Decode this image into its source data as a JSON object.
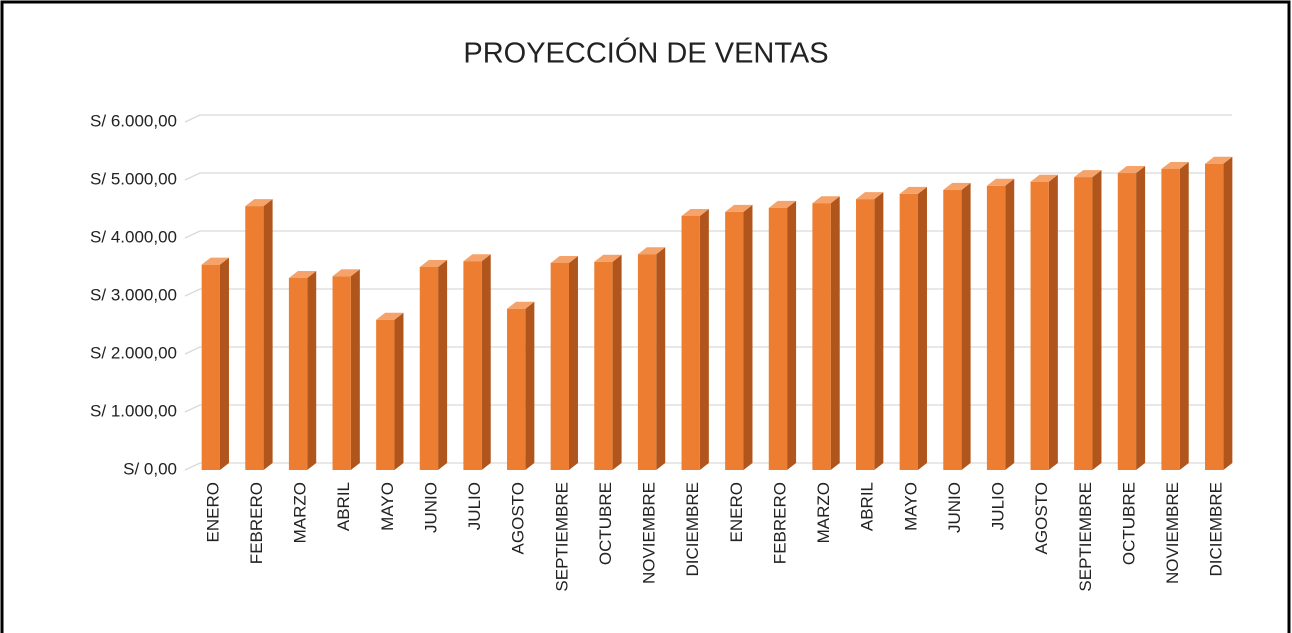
{
  "chart_data": {
    "type": "bar3d",
    "title": "PROYECCIÓN DE VENTAS",
    "categories": [
      "ENERO",
      "FEBRERO",
      "MARZO",
      "ABRIL",
      "MAYO",
      "JUNIO",
      "JULIO",
      "AGOSTO",
      "SEPTIEMBRE",
      "OCTUBRE",
      "NOVIEMBRE",
      "DICIEMBRE",
      "ENERO",
      "FEBRERO",
      "MARZO",
      "ABRIL",
      "MAYO",
      "JUNIO",
      "JULIO",
      "AGOSTO",
      "SEPTIEMBRE",
      "OCTUBRE",
      "NOVIEMBRE",
      "DICIEMBRE"
    ],
    "values": [
      3540,
      4550,
      3310,
      3340,
      2590,
      3500,
      3600,
      2780,
      3570,
      3590,
      3720,
      4380,
      4450,
      4520,
      4600,
      4670,
      4760,
      4830,
      4900,
      4970,
      5050,
      5120,
      5190,
      5280
    ],
    "color": "#ED7D31",
    "ylim": [
      0,
      6000
    ],
    "yticks": [
      {
        "value": 0,
        "label": "S/ 0,00"
      },
      {
        "value": 1000,
        "label": "S/ 1.000,00"
      },
      {
        "value": 2000,
        "label": "S/ 2.000,00"
      },
      {
        "value": 3000,
        "label": "S/ 3.000,00"
      },
      {
        "value": 4000,
        "label": "S/ 4.000,00"
      },
      {
        "value": 5000,
        "label": "S/ 5.000,00"
      },
      {
        "value": 6000,
        "label": "S/ 6.000,00"
      }
    ],
    "grid": true
  }
}
